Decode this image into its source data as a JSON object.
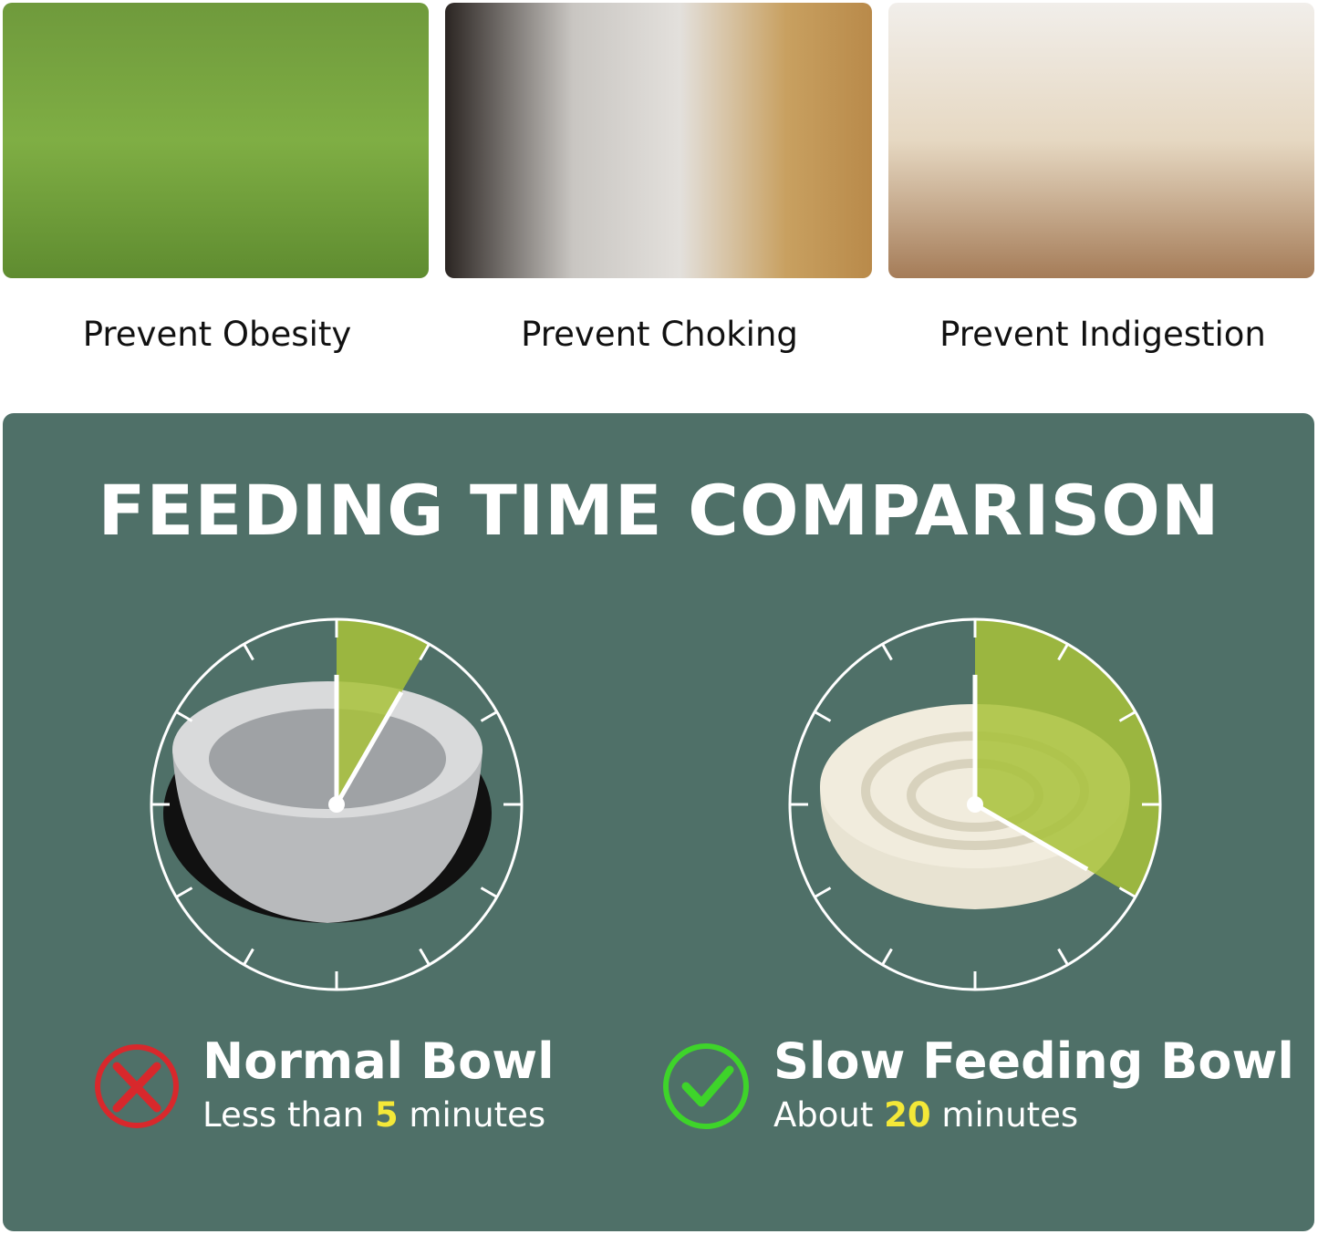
{
  "photos": [
    {
      "caption": "Prevent Obesity"
    },
    {
      "caption": "Prevent Choking"
    },
    {
      "caption": "Prevent Indigestion"
    }
  ],
  "comparison": {
    "title": "FEEDING TIME COMPARISON",
    "colors": {
      "panel": "#4f7068",
      "wedge": "#a8c23a",
      "highlight": "#f4e838",
      "cross": "#d8282c",
      "check": "#3ed42a"
    },
    "normal": {
      "icon": "cross-icon",
      "title": "Normal Bowl",
      "sub_pre": "Less than ",
      "value": "5",
      "sub_post": " minutes",
      "minutes": 5
    },
    "slow": {
      "icon": "check-icon",
      "title": "Slow Feeding Bowl",
      "sub_pre": "About ",
      "value": "20",
      "sub_post": " minutes",
      "minutes": 20
    }
  }
}
